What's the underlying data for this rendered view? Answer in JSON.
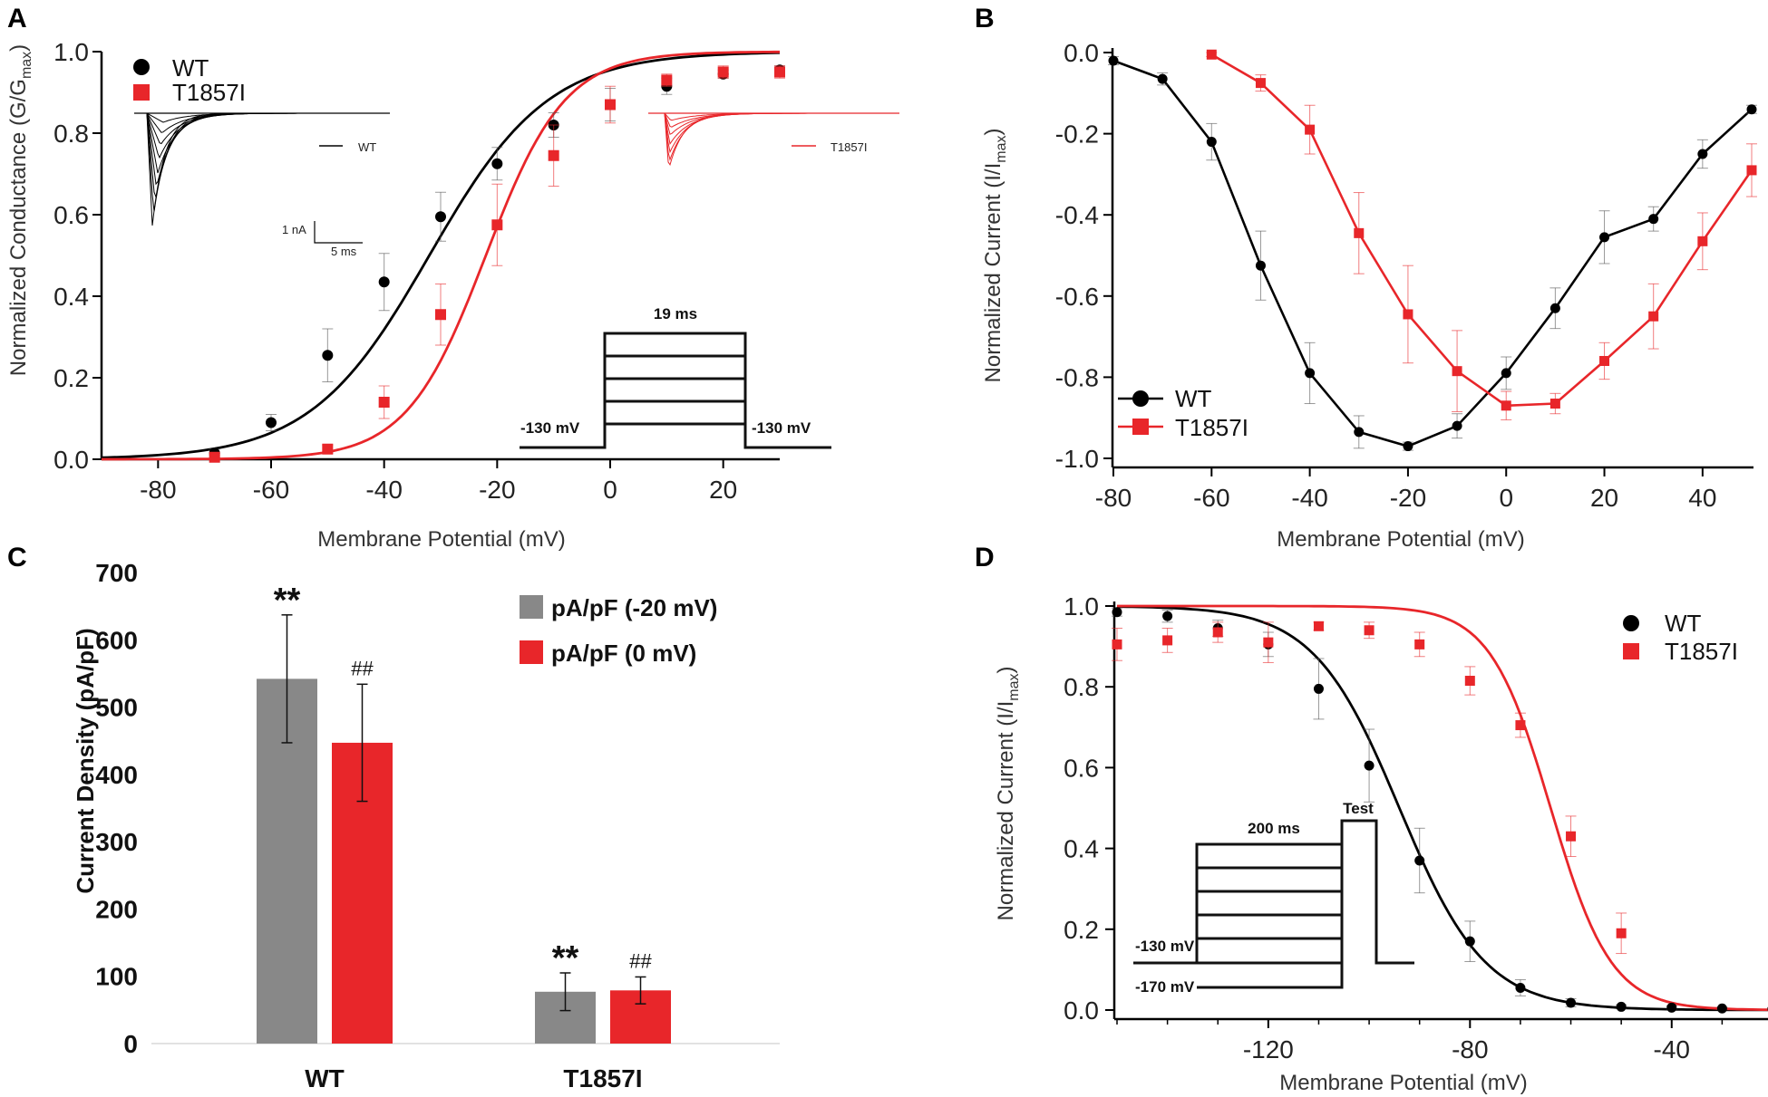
{
  "panels": {
    "A": {
      "letter": "A",
      "chart_data": {
        "type": "scatter",
        "title": "",
        "xlabel": "Membrane Potential (mV)",
        "ylabel_main": "Normalized Conductance (G/G",
        "ylabel_sub": "max",
        "ylabel_close": ")",
        "xlim": [
          -90,
          30
        ],
        "ylim": [
          0,
          1
        ],
        "xticks": [
          -80,
          -60,
          -40,
          -20,
          0,
          20
        ],
        "yticks": [
          0.0,
          0.2,
          0.4,
          0.6,
          0.8,
          1.0
        ],
        "ytick_labels": [
          "0.0",
          "0.2",
          "0.4",
          "0.6",
          "0.8",
          "1.0"
        ],
        "series": [
          {
            "name": "WT",
            "color": "#000000",
            "marker": "circle",
            "x": [
              -70,
              -60,
              -50,
              -40,
              -30,
              -20,
              -10,
              0,
              10,
              20,
              30
            ],
            "y": [
              0.015,
              0.09,
              0.255,
              0.435,
              0.595,
              0.725,
              0.82,
              0.87,
              0.915,
              0.945,
              0.955
            ],
            "err": [
              0.01,
              0.02,
              0.065,
              0.07,
              0.06,
              0.04,
              0.03,
              0.04,
              0.02,
              0.01,
              0.01
            ],
            "fit": {
              "vhalf": -32,
              "k": 10.5
            }
          },
          {
            "name": "T1857I",
            "color": "#e8262a",
            "marker": "square",
            "x": [
              -70,
              -50,
              -40,
              -30,
              -20,
              -10,
              0,
              10,
              20,
              30
            ],
            "y": [
              0.005,
              0.025,
              0.14,
              0.355,
              0.575,
              0.745,
              0.87,
              0.93,
              0.95,
              0.95
            ],
            "err": [
              0.005,
              0.01,
              0.04,
              0.075,
              0.1,
              0.075,
              0.045,
              0.015,
              0.015,
              0.015
            ],
            "fit": {
              "vhalf": -22,
              "k": 7
            }
          }
        ],
        "legend": [
          "WT",
          "T1857I"
        ],
        "inset_labels": {
          "wt_trace": "WT",
          "mut_trace": "T1857I",
          "scale_current": "1 nA",
          "scale_time": "5 ms"
        },
        "protocol": {
          "duration": "19 ms",
          "hold_left": "-130 mV",
          "hold_right": "-130 mV"
        }
      }
    },
    "B": {
      "letter": "B",
      "chart_data": {
        "type": "line",
        "xlabel": "Membrane Potential (mV)",
        "ylabel_main": "Normalized Current (I/I",
        "ylabel_sub": "max",
        "ylabel_close": ")",
        "xlim": [
          -80,
          50
        ],
        "ylim": [
          -1.0,
          0.0
        ],
        "xticks": [
          -80,
          -60,
          -40,
          -20,
          0,
          20,
          40
        ],
        "yticks": [
          0.0,
          -0.2,
          -0.4,
          -0.6,
          -0.8,
          -1.0
        ],
        "ytick_labels": [
          "0.0",
          "-0.2",
          "-0.4",
          "-0.6",
          "-0.8",
          "-1.0"
        ],
        "series": [
          {
            "name": "WT",
            "color": "#000000",
            "marker": "circle",
            "x": [
              -80,
              -70,
              -60,
              -50,
              -40,
              -30,
              -20,
              -10,
              0,
              10,
              20,
              30,
              40,
              50
            ],
            "y": [
              -0.02,
              -0.065,
              -0.22,
              -0.525,
              -0.79,
              -0.935,
              -0.97,
              -0.92,
              -0.79,
              -0.63,
              -0.455,
              -0.41,
              -0.25,
              -0.14
            ],
            "err": [
              0.01,
              0.015,
              0.045,
              0.085,
              0.075,
              0.04,
              0.01,
              0.03,
              0.04,
              0.05,
              0.065,
              0.03,
              0.035,
              0.01
            ]
          },
          {
            "name": "T1857I",
            "color": "#e8262a",
            "marker": "square",
            "x": [
              -60,
              -50,
              -40,
              -30,
              -20,
              -10,
              0,
              10,
              20,
              30,
              40,
              50
            ],
            "y": [
              -0.005,
              -0.075,
              -0.19,
              -0.445,
              -0.645,
              -0.785,
              -0.87,
              -0.865,
              -0.76,
              -0.65,
              -0.465,
              -0.29
            ],
            "err": [
              0.005,
              0.02,
              0.06,
              0.1,
              0.12,
              0.1,
              0.035,
              0.025,
              0.045,
              0.08,
              0.07,
              0.065
            ]
          }
        ],
        "legend": [
          "WT",
          "T1857I"
        ]
      }
    },
    "C": {
      "letter": "C",
      "chart_data": {
        "type": "bar",
        "ylabel": "Current Density (pA/pF)",
        "ylim": [
          0,
          700
        ],
        "yticks": [
          0,
          100,
          200,
          300,
          400,
          500,
          600,
          700
        ],
        "categories": [
          "WT",
          "T1857I"
        ],
        "series": [
          {
            "name": "pA/pF (-20 mV)",
            "color": "#888888",
            "values": [
              542,
              77
            ],
            "err": [
              95,
              28
            ],
            "sig": [
              "**",
              "**"
            ]
          },
          {
            "name": "pA/pF (0 mV)",
            "color": "#e8262a",
            "values": [
              447,
              79
            ],
            "err": [
              87,
              20
            ],
            "sig": [
              "##",
              "##"
            ]
          }
        ]
      }
    },
    "D": {
      "letter": "D",
      "chart_data": {
        "type": "scatter",
        "xlabel": "Membrane Potential (mV)",
        "ylabel_main": "Normalized Current (I/I",
        "ylabel_sub": "max",
        "ylabel_close": ")",
        "xlim": [
          -150,
          -20
        ],
        "ylim": [
          0,
          1
        ],
        "xticks": [
          -120,
          -80,
          -40
        ],
        "yticks": [
          0.0,
          0.2,
          0.4,
          0.6,
          0.8,
          1.0
        ],
        "ytick_labels": [
          "0.0",
          "0.2",
          "0.4",
          "0.6",
          "0.8",
          "1.0"
        ],
        "series": [
          {
            "name": "WT",
            "color": "#000000",
            "marker": "circle",
            "x": [
              -150,
              -140,
              -130,
              -120,
              -110,
              -100,
              -90,
              -80,
              -70,
              -60,
              -50,
              -40,
              -30,
              -20
            ],
            "y": [
              0.985,
              0.975,
              0.945,
              0.905,
              0.795,
              0.605,
              0.37,
              0.17,
              0.055,
              0.018,
              0.008,
              0.006,
              0.004,
              0.003
            ],
            "err": [
              0.01,
              0.015,
              0.02,
              0.03,
              0.075,
              0.09,
              0.08,
              0.05,
              0.02,
              0.01,
              0.005,
              0.004,
              0.003,
              0.003
            ],
            "fit": {
              "vhalf": -94,
              "k": 8.5
            }
          },
          {
            "name": "T1857I",
            "color": "#e8262a",
            "marker": "square",
            "x": [
              -150,
              -140,
              -130,
              -120,
              -110,
              -100,
              -90,
              -80,
              -70,
              -60,
              -50
            ],
            "y": [
              0.905,
              0.915,
              0.935,
              0.91,
              0.95,
              0.94,
              0.905,
              0.815,
              0.705,
              0.43,
              0.19
            ],
            "err": [
              0.04,
              0.03,
              0.025,
              0.05,
              0.01,
              0.02,
              0.03,
              0.035,
              0.03,
              0.05,
              0.05
            ],
            "fit": {
              "vhalf": -64,
              "k": 6
            }
          }
        ],
        "legend": [
          "WT",
          "T1857I"
        ],
        "protocol": {
          "duration": "200 ms",
          "test": "Test",
          "hold_top": "-130 mV",
          "hold_bottom": "-170 mV"
        }
      }
    }
  }
}
